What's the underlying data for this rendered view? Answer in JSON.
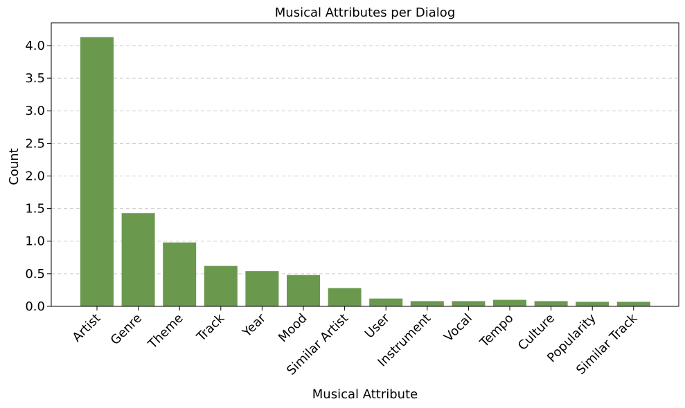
{
  "chart_data": {
    "type": "bar",
    "title": "Musical Attributes per Dialog",
    "xlabel": "Musical Attribute",
    "ylabel": "Count",
    "categories": [
      "Artist",
      "Genre",
      "Theme",
      "Track",
      "Year",
      "Mood",
      "Similar Artist",
      "User",
      "Instrument",
      "Vocal",
      "Tempo",
      "Culture",
      "Popularity",
      "Similar Track"
    ],
    "values": [
      4.13,
      1.43,
      0.98,
      0.62,
      0.54,
      0.48,
      0.28,
      0.12,
      0.08,
      0.08,
      0.1,
      0.08,
      0.07,
      0.07
    ],
    "ylim": [
      0,
      4.35
    ],
    "yticks": [
      0.0,
      0.5,
      1.0,
      1.5,
      2.0,
      2.5,
      3.0,
      3.5,
      4.0
    ],
    "grid": "y-dashed",
    "bar_color": "#6a994e"
  }
}
